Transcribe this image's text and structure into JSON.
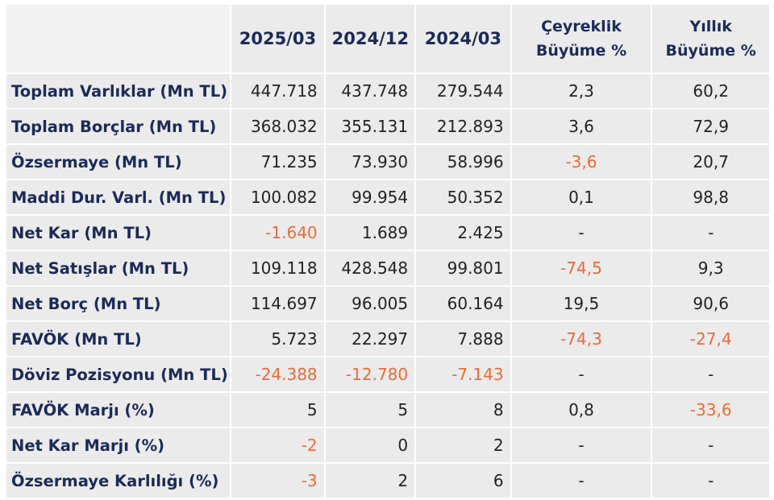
{
  "table": {
    "headers": [
      "2025/03",
      "2024/12",
      "2024/03",
      "Çeyreklik Büyüme %",
      "Yıllık Büyüme %"
    ],
    "rows": [
      {
        "label": "Toplam Varlıklar (Mn TL)",
        "values": [
          "447.718",
          "437.748",
          "279.544",
          "2,3",
          "60,2"
        ]
      },
      {
        "label": "Toplam Borçlar (Mn TL)",
        "values": [
          "368.032",
          "355.131",
          "212.893",
          "3,6",
          "72,9"
        ]
      },
      {
        "label": "Özsermaye (Mn TL)",
        "values": [
          "71.235",
          "73.930",
          "58.996",
          "-3,6",
          "20,7"
        ]
      },
      {
        "label": "Maddi Dur. Varl. (Mn TL)",
        "values": [
          "100.082",
          "99.954",
          "50.352",
          "0,1",
          "98,8"
        ]
      },
      {
        "label": "Net Kar (Mn TL)",
        "values": [
          "-1.640",
          "1.689",
          "2.425",
          "-",
          "-"
        ]
      },
      {
        "label": "Net Satışlar (Mn TL)",
        "values": [
          "109.118",
          "428.548",
          "99.801",
          "-74,5",
          "9,3"
        ]
      },
      {
        "label": "Net Borç (Mn TL)",
        "values": [
          "114.697",
          "96.005",
          "60.164",
          "19,5",
          "90,6"
        ]
      },
      {
        "label": "FAVÖK (Mn TL)",
        "values": [
          "5.723",
          "22.297",
          "7.888",
          "-74,3",
          "-27,4"
        ]
      },
      {
        "label": "Döviz Pozisyonu (Mn TL)",
        "values": [
          "-24.388",
          "-12.780",
          "-7.143",
          "-",
          "-"
        ]
      },
      {
        "label": "FAVÖK Marjı (%)",
        "values": [
          "5",
          "5",
          "8",
          "0,8",
          "-33,6"
        ]
      },
      {
        "label": "Net Kar Marjı (%)",
        "values": [
          "-2",
          "0",
          "2",
          "-",
          "-"
        ]
      },
      {
        "label": "Özsermaye Karlılığı (%)",
        "values": [
          "-3",
          "2",
          "6",
          "-",
          "-"
        ]
      }
    ]
  },
  "colors": {
    "header_text": "#1b2a5a",
    "label_text": "#1b2a5a",
    "value_text": "#222222",
    "negative_text": "#ec6a36",
    "cell_background": "#ebebeb"
  }
}
